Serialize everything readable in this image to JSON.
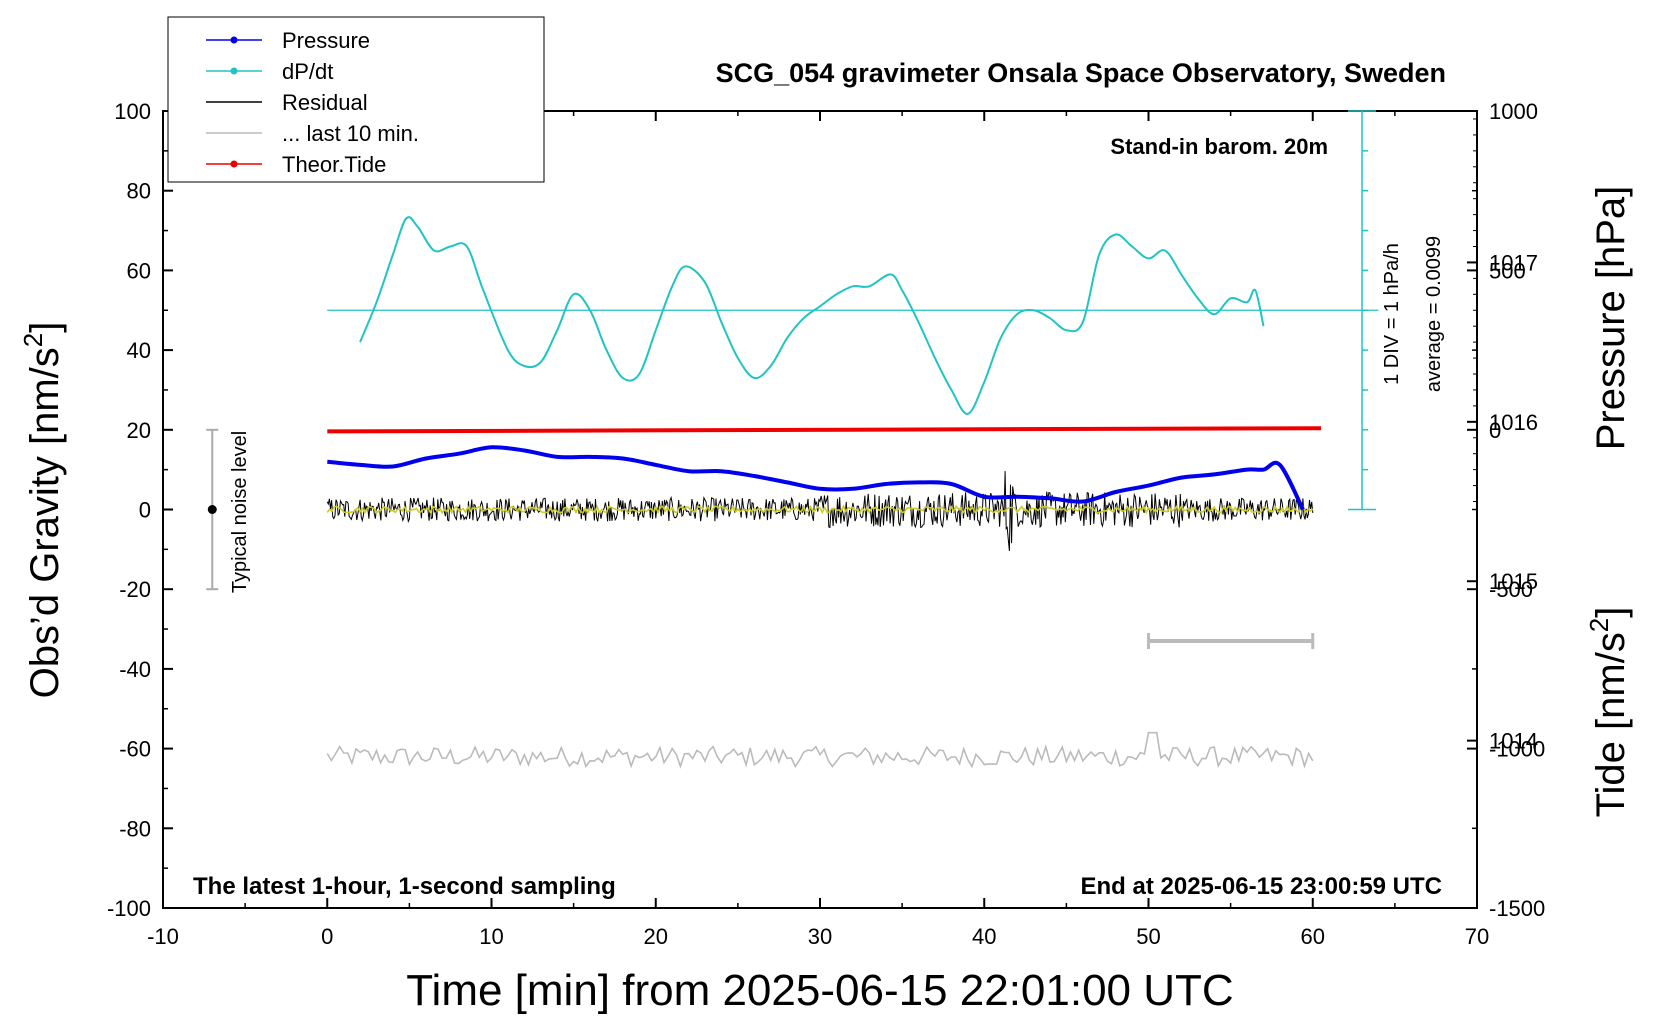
{
  "chart_data": {
    "type": "line",
    "title": "SCG_054 gravimeter Onsala Space Observatory, Sweden",
    "xlabel": "Time [min] from 2025-06-15 22:01:00 UTC",
    "xlim": [
      -10,
      70
    ],
    "xticks": [
      -10,
      0,
      10,
      20,
      30,
      40,
      50,
      60,
      70
    ],
    "left_axis": {
      "label_main": "Obs’d Gravity [nm/s",
      "label_sup": "2",
      "label_end": "]",
      "ylim": [
        -100,
        100
      ],
      "ticks": [
        -100,
        -80,
        -60,
        -40,
        -20,
        0,
        20,
        40,
        60,
        80,
        100
      ]
    },
    "pressure_axis": {
      "label": "Pressure [hPa]",
      "ticks": [
        1014,
        1015,
        1016,
        1017
      ],
      "range_hpa": [
        1012.95,
        1017.95
      ]
    },
    "tide_axis": {
      "label_main": "Tide [nm/s",
      "label_sup": "2",
      "label_end": "]",
      "ticks": [
        -1500,
        -1000,
        -500,
        0,
        500,
        1000
      ],
      "range": [
        -1500,
        1000
      ]
    },
    "dpdt_scale": {
      "label": "1 DIV = 1 hPa/h",
      "average_label": "average = 0.0099",
      "baseline_gravity": 50,
      "divisions": 10
    },
    "annotations": {
      "barometer": "Stand-in barom. 20m",
      "sampling": "The latest 1-hour, 1-second sampling",
      "end_time": "End at 2025-06-15 23:00:59 UTC",
      "noise": "Typical noise level",
      "noise_range": [
        -20,
        20
      ],
      "last10_range_min": [
        50,
        60
      ]
    },
    "legend": [
      {
        "label": "Pressure",
        "color": "#0000ee",
        "marker": true
      },
      {
        "label": "dP/dt",
        "color": "#22c3c3",
        "marker": true
      },
      {
        "label": "Residual",
        "color": "#000000",
        "marker": false
      },
      {
        "label": "... last 10 min.",
        "color": "#bbbbbb",
        "marker": false
      },
      {
        "label": "Theor.Tide",
        "color": "#ee0000",
        "marker": true
      }
    ],
    "series": [
      {
        "name": "Pressure",
        "axis": "pressure_hpa",
        "color": "#0000ee",
        "x": [
          0,
          2,
          4,
          6,
          8,
          10,
          12,
          14,
          16,
          18,
          20,
          22,
          24,
          26,
          28,
          30,
          32,
          34,
          36,
          38,
          40,
          42,
          44,
          46,
          48,
          50,
          52,
          54,
          56,
          57,
          58,
          59.4
        ],
        "y": [
          1015.75,
          1015.73,
          1015.72,
          1015.77,
          1015.8,
          1015.84,
          1015.82,
          1015.78,
          1015.78,
          1015.77,
          1015.73,
          1015.69,
          1015.69,
          1015.66,
          1015.62,
          1015.58,
          1015.58,
          1015.61,
          1015.62,
          1015.61,
          1015.53,
          1015.53,
          1015.52,
          1015.5,
          1015.56,
          1015.6,
          1015.65,
          1015.67,
          1015.7,
          1015.7,
          1015.73,
          1015.45
        ]
      },
      {
        "name": "dP/dt",
        "axis": "gravity_nm_s2",
        "color": "#22c3c3",
        "x": [
          2,
          3,
          4,
          4.8,
          5.5,
          6.5,
          7.5,
          8.5,
          9.5,
          11,
          12,
          13,
          14,
          15,
          16,
          17,
          18,
          19,
          20,
          21,
          21.8,
          23,
          24,
          25,
          26,
          27,
          28,
          29,
          30,
          31,
          32,
          33,
          34.3,
          35,
          36,
          37,
          38,
          39,
          40,
          41,
          42,
          43,
          44,
          45,
          46,
          47,
          48,
          49,
          50,
          51,
          52,
          53,
          54,
          55,
          56,
          56.5,
          57
        ],
        "y": [
          42,
          52,
          64,
          73,
          71,
          65,
          66,
          66,
          55,
          40,
          36,
          37,
          45,
          54,
          50,
          40,
          33,
          34,
          45,
          56,
          61,
          57,
          47,
          38,
          33,
          36,
          43,
          48,
          51,
          54,
          56,
          56,
          59,
          55,
          47,
          38,
          30,
          24,
          32,
          43,
          49,
          50,
          48,
          45,
          47,
          64,
          69,
          66,
          63,
          65,
          59,
          53,
          49,
          53,
          52,
          55,
          46
        ]
      },
      {
        "name": "Residual",
        "axis": "gravity_nm_s2",
        "color": "#000000",
        "x_range": [
          0,
          60
        ],
        "y_center": 0,
        "amplitude": 3
      },
      {
        "name": "... last 10 min.",
        "axis": "gravity_nm_s2",
        "color": "#bbbbbb",
        "x_range": [
          0,
          60
        ],
        "y_center": -62,
        "amplitude": 2.5
      },
      {
        "name": "Theor.Tide",
        "axis": "tide_nm_s2",
        "color": "#ee0000",
        "x": [
          0,
          60.5
        ],
        "y": [
          -5,
          5
        ]
      }
    ]
  }
}
